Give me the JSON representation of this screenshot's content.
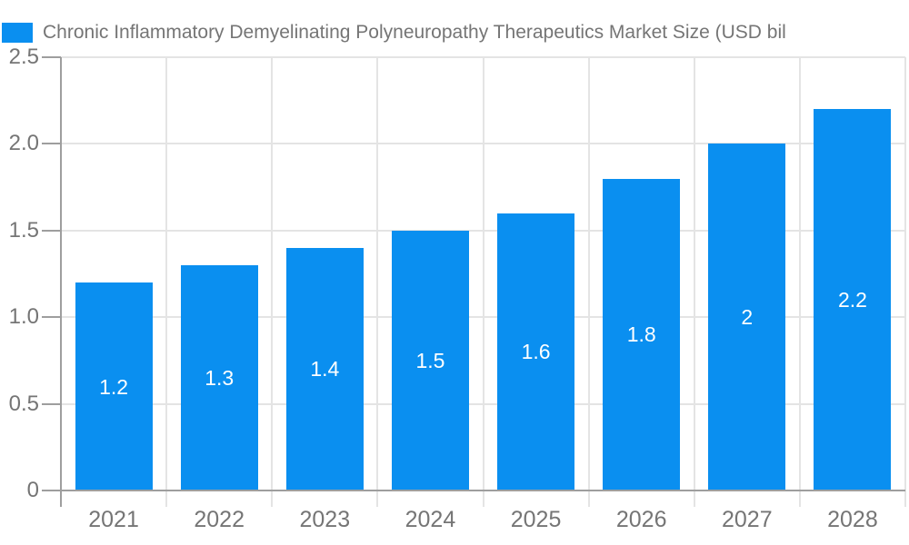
{
  "header": {
    "title": "Chronic Inflammatory Demyelinating Polyneuropathy Therapeutics Market Size (USD bil"
  },
  "chart_data": {
    "type": "bar",
    "title": "Chronic Inflammatory Demyelinating Polyneuropathy Therapeutics Market Size (USD bil",
    "categories": [
      "2021",
      "2022",
      "2023",
      "2024",
      "2025",
      "2026",
      "2027",
      "2028"
    ],
    "values": [
      1.2,
      1.3,
      1.4,
      1.5,
      1.6,
      1.8,
      2,
      2.2
    ],
    "value_labels": [
      "1.2",
      "1.3",
      "1.4",
      "1.5",
      "1.6",
      "1.8",
      "2",
      "2.2"
    ],
    "xlabel": "",
    "ylabel": "",
    "ylim": [
      0,
      2.5
    ],
    "yticks": [
      0,
      0.5,
      1,
      1.5,
      2,
      2.5
    ],
    "ytick_labels": [
      "0",
      "0.5",
      "1.0",
      "1.5",
      "2.0",
      "2.5"
    ],
    "grid": true,
    "legend_position": "top-left",
    "colors": {
      "bar": "#0a8ff0",
      "axis": "#9e9e9e",
      "grid": "#e4e4e4",
      "text": "#757575",
      "bar_label": "#ffffff",
      "background": "#ffffff"
    }
  }
}
